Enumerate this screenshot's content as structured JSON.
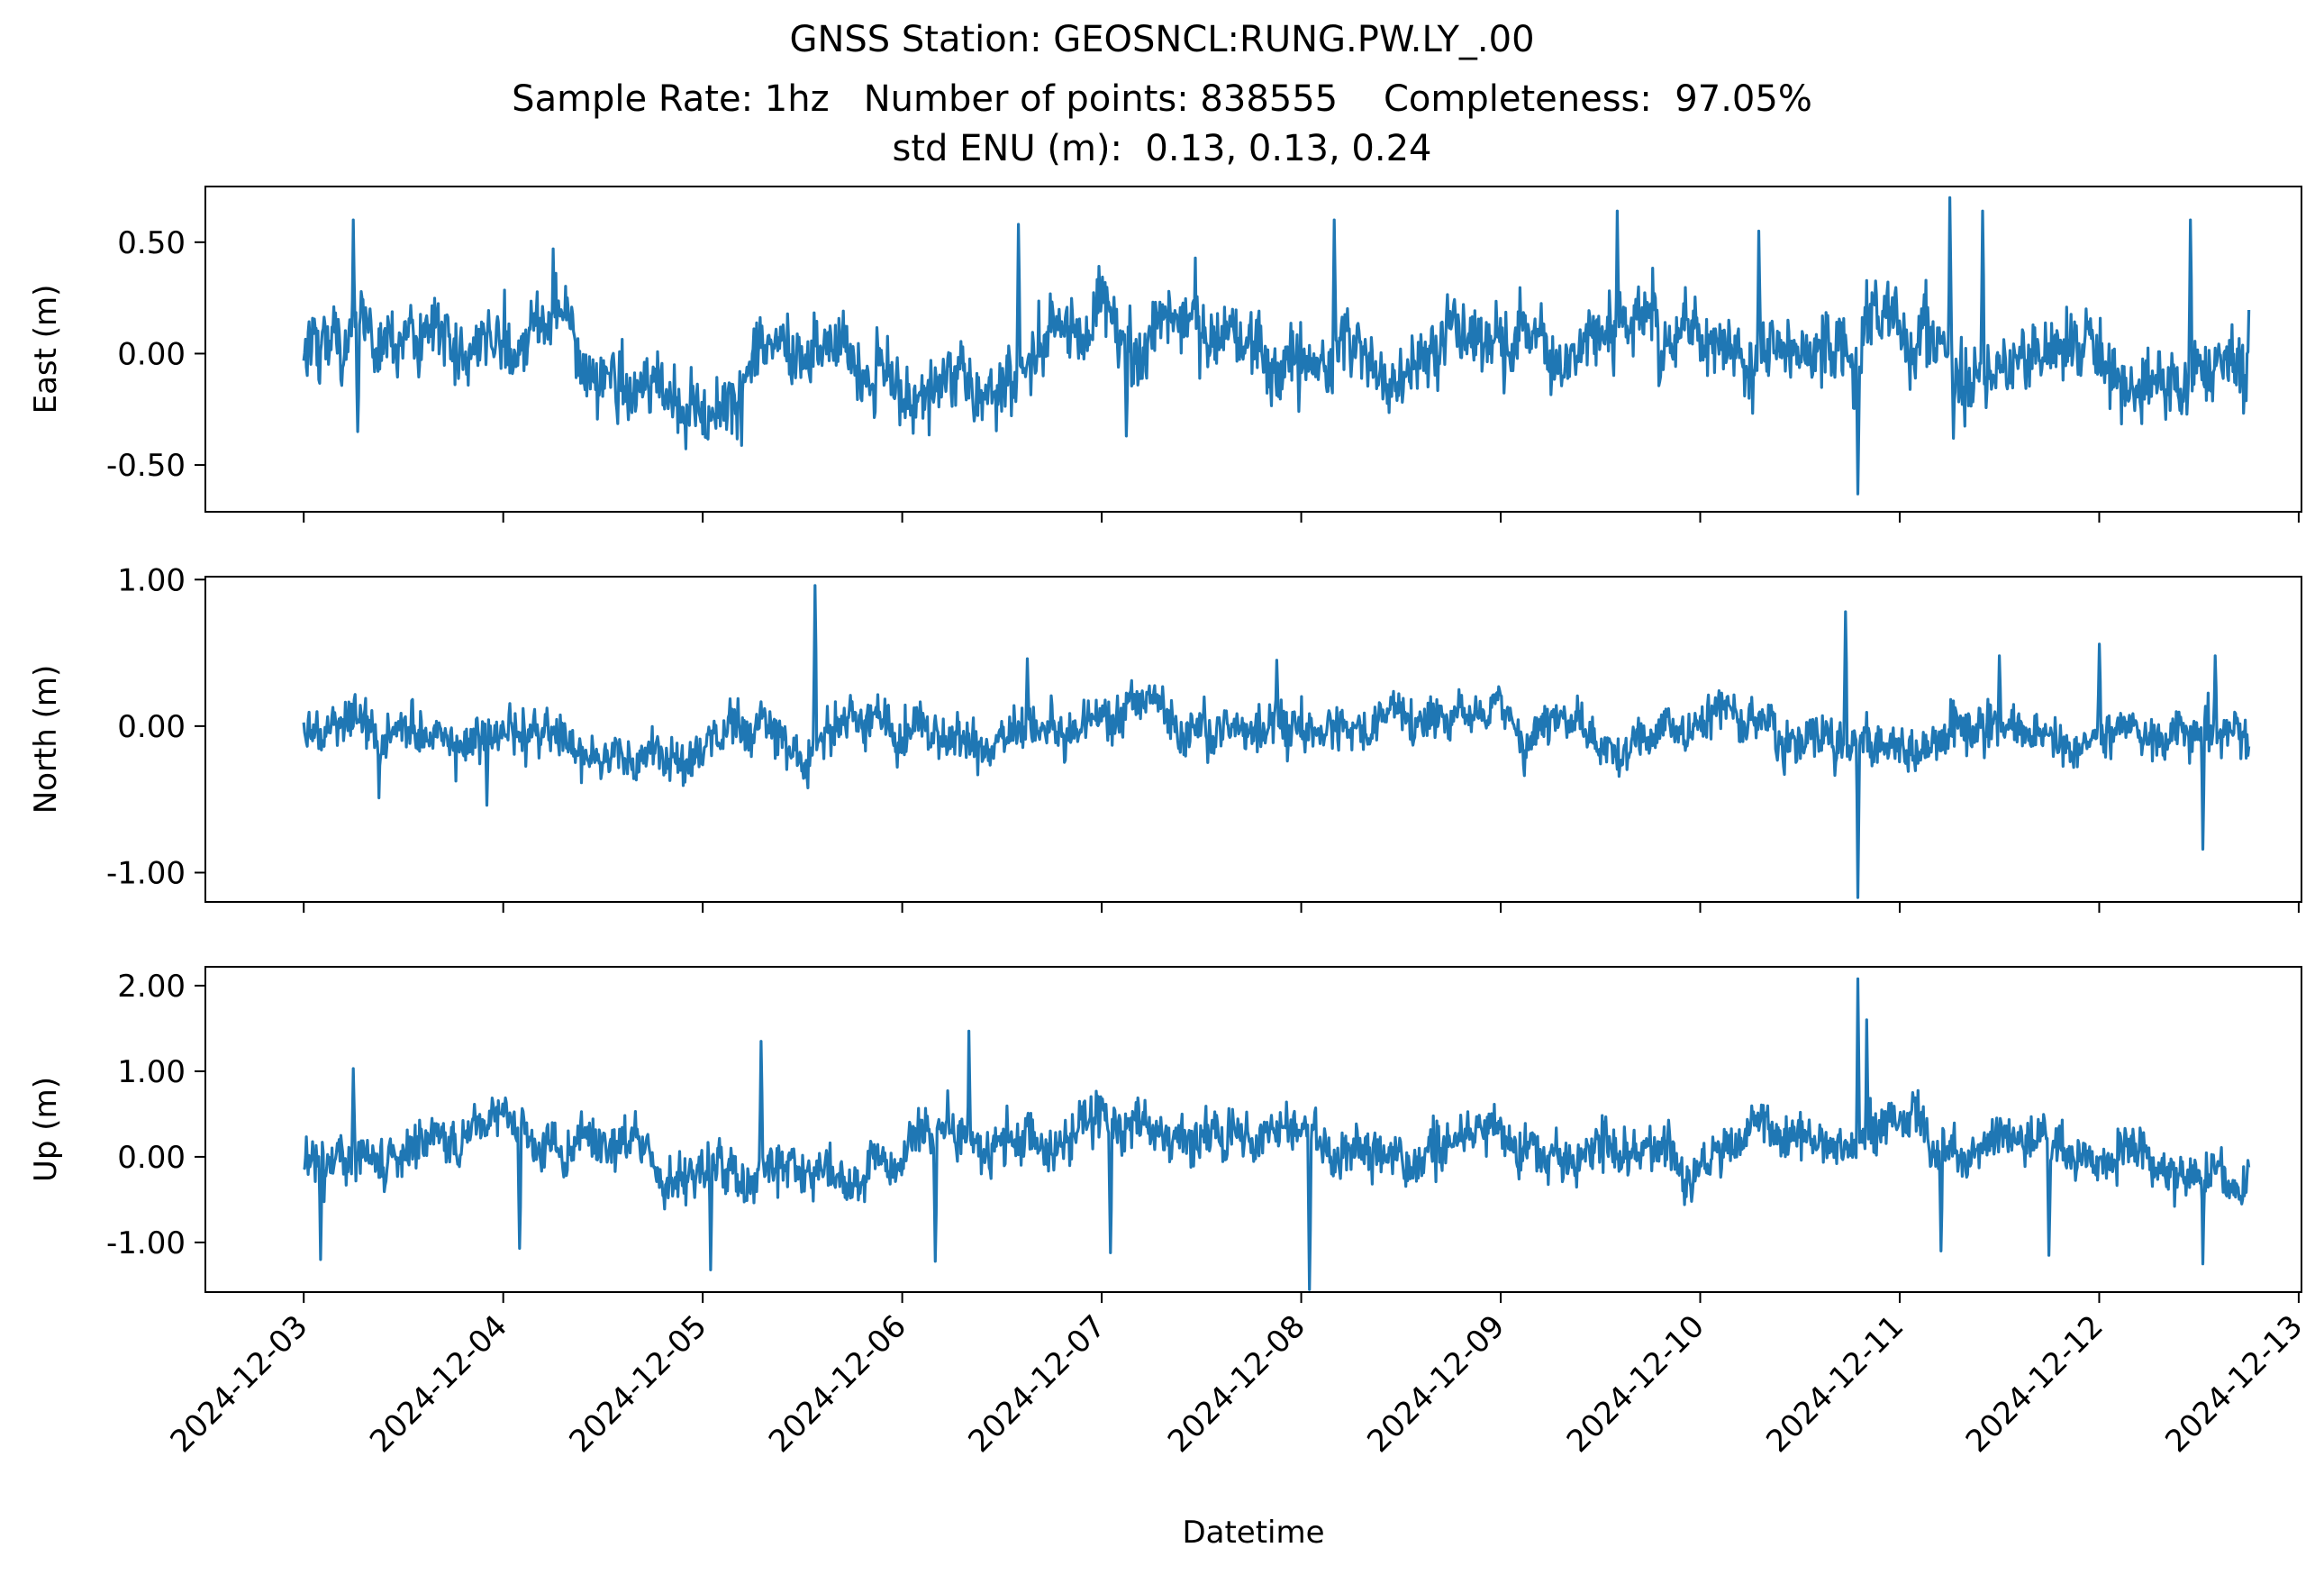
{
  "chart_data": {
    "type": "line",
    "title_lines": [
      "GNSS Station: GEOSNCL:RUNG.PW.LY_.00",
      "Sample Rate: 1hz   Number of points: 838555    Completeness:  97.05%",
      "std ENU (m):  0.13, 0.13, 0.24"
    ],
    "xlabel": "Datetime",
    "x_ticks": [
      "2024-12-03",
      "2024-12-04",
      "2024-12-05",
      "2024-12-06",
      "2024-12-07",
      "2024-12-08",
      "2024-12-09",
      "2024-12-10",
      "2024-12-11",
      "2024-12-12",
      "2024-12-13"
    ],
    "xlim": [
      "2024-12-02T12:10",
      "2024-12-13T00:20"
    ],
    "data_range": [
      "2024-12-03T00:00",
      "2024-12-12T18:00"
    ],
    "line_color": "#1f77b4",
    "grid": false,
    "series": [
      {
        "ylabel": "East (m)",
        "ylim": [
          -0.71,
          0.75
        ],
        "yticks": [
          0.5,
          0.0,
          -0.5
        ],
        "ytick_labels": [
          "0.50",
          "0.00",
          "-0.50"
        ],
        "baseline_std": 0.13,
        "events": [
          {
            "x": "2024-12-03T06:00",
            "y": 0.6
          },
          {
            "x": "2024-12-03T06:30",
            "y": -0.35
          },
          {
            "x": "2024-12-04T06:00",
            "y": 0.47
          },
          {
            "x": "2024-12-06T14:00",
            "y": 0.58
          },
          {
            "x": "2024-12-07T03:00",
            "y": -0.37
          },
          {
            "x": "2024-12-08T04:00",
            "y": 0.6
          },
          {
            "x": "2024-12-09T14:00",
            "y": 0.64
          },
          {
            "x": "2024-12-10T07:00",
            "y": 0.55
          },
          {
            "x": "2024-12-10T19:00",
            "y": -0.63
          },
          {
            "x": "2024-12-11T06:00",
            "y": 0.7
          },
          {
            "x": "2024-12-11T10:00",
            "y": 0.64
          },
          {
            "x": "2024-12-11T06:30",
            "y": -0.38
          },
          {
            "x": "2024-12-12T11:00",
            "y": 0.6
          }
        ]
      },
      {
        "ylabel": "North (m)",
        "ylim": [
          -1.2,
          1.02
        ],
        "yticks": [
          1.0,
          0.0,
          -1.0
        ],
        "ytick_labels": [
          "1.00",
          "0.00",
          "-1.00"
        ],
        "baseline_std": 0.13,
        "events": [
          {
            "x": "2024-12-03T09:00",
            "y": -0.49
          },
          {
            "x": "2024-12-03T22:00",
            "y": -0.54
          },
          {
            "x": "2024-12-05T13:30",
            "y": 0.96
          },
          {
            "x": "2024-12-06T15:00",
            "y": 0.46
          },
          {
            "x": "2024-12-07T21:00",
            "y": 0.45
          },
          {
            "x": "2024-12-10T17:30",
            "y": 0.78
          },
          {
            "x": "2024-12-10T19:00",
            "y": -1.17
          },
          {
            "x": "2024-12-11T12:00",
            "y": 0.48
          },
          {
            "x": "2024-12-12T00:00",
            "y": 0.56
          },
          {
            "x": "2024-12-12T12:30",
            "y": -0.84
          },
          {
            "x": "2024-12-12T14:00",
            "y": 0.48
          }
        ]
      },
      {
        "ylabel": "Up (m)",
        "ylim": [
          -1.58,
          2.22
        ],
        "yticks": [
          2.0,
          1.0,
          0.0,
          -1.0
        ],
        "ytick_labels": [
          "2.00",
          "1.00",
          "0.00",
          "-1.00"
        ],
        "baseline_std": 0.24,
        "events": [
          {
            "x": "2024-12-03T02:00",
            "y": -1.2
          },
          {
            "x": "2024-12-03T06:00",
            "y": 1.03
          },
          {
            "x": "2024-12-04T02:00",
            "y": -1.07
          },
          {
            "x": "2024-12-05T01:00",
            "y": -1.32
          },
          {
            "x": "2024-12-05T07:00",
            "y": 1.35
          },
          {
            "x": "2024-12-06T08:00",
            "y": 1.47
          },
          {
            "x": "2024-12-06T04:00",
            "y": -1.22
          },
          {
            "x": "2024-12-07T01:00",
            "y": -1.12
          },
          {
            "x": "2024-12-08T01:00",
            "y": -1.55
          },
          {
            "x": "2024-12-10T19:00",
            "y": 2.08
          },
          {
            "x": "2024-12-10T20:00",
            "y": 1.6
          },
          {
            "x": "2024-12-11T05:00",
            "y": -1.1
          },
          {
            "x": "2024-12-11T18:00",
            "y": -1.15
          },
          {
            "x": "2024-12-12T12:30",
            "y": -1.25
          }
        ]
      }
    ]
  }
}
